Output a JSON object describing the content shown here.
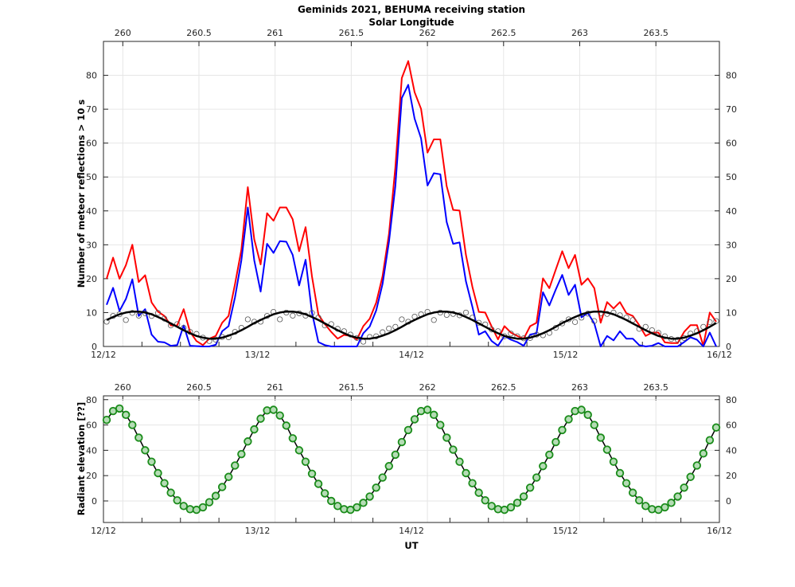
{
  "chart_data": [
    {
      "type": "line",
      "title": "Geminids 2021, BEHUMA receiving station",
      "top_axis_label": "Solar Longitude",
      "top_axis_ticks": [
        "260",
        "260.5",
        "261",
        "261.5",
        "262",
        "262.5",
        "263",
        "263.5"
      ],
      "top_axis_range": [
        259.873,
        263.917
      ],
      "xlabel": "",
      "x_tick_labels": [
        "12/12",
        "13/12",
        "14/12",
        "15/12",
        "16/12"
      ],
      "x": {
        "start": "12/12 00:30 UT",
        "step_hours": 1
      },
      "ylabel": "Number of meteor reflections > 10 s",
      "ylim": [
        0,
        90
      ],
      "y_ticks": [
        0,
        10,
        20,
        30,
        40,
        50,
        60,
        70,
        80
      ],
      "grid": true,
      "series": [
        {
          "color": "#ff0000",
          "style": "line",
          "values": [
            20,
            26.2,
            20,
            24,
            30,
            19,
            21,
            13,
            10.3,
            9,
            6.2,
            6.2,
            11,
            4.3,
            1.6,
            0.4,
            2.3,
            3.1,
            7,
            9,
            18.4,
            28.5,
            47,
            31.6,
            24.2,
            39.3,
            37.1,
            41,
            41,
            37.5,
            28.1,
            35.2,
            20.7,
            9.4,
            6.6,
            4.3,
            2.3,
            3.4,
            3.1,
            2.1,
            6,
            8.2,
            12.9,
            20.7,
            33.2,
            52.8,
            79.2,
            84.2,
            75,
            70.1,
            57.2,
            61.1,
            61.1,
            47.3,
            40.3,
            40.1,
            27,
            17.6,
            10.2,
            10,
            5.9,
            2.1,
            6,
            4.1,
            3.1,
            2.3,
            6,
            7,
            20.1,
            17.2,
            22.7,
            28.1,
            23.1,
            27,
            18.2,
            20.1,
            17.2,
            7,
            13.1,
            11.2,
            13.1,
            9.8,
            9,
            6.3,
            3.1,
            4.1,
            4.1,
            1.2,
            1,
            1,
            4.3,
            6.3,
            6.3,
            0.2,
            10,
            7.3
          ]
        },
        {
          "color": "#0000ff",
          "style": "line",
          "values": [
            12.3,
            17.3,
            10.5,
            14,
            19.8,
            9,
            11,
            3.5,
            1.4,
            1.2,
            0.2,
            0.4,
            6.2,
            0.2,
            0.1,
            0,
            0,
            0.5,
            4.5,
            6,
            14.5,
            25.4,
            41,
            25.4,
            16.2,
            30.3,
            27.6,
            31.1,
            30.9,
            27,
            18,
            25.6,
            10,
            1.3,
            0.4,
            0,
            0,
            0,
            0,
            0,
            3.9,
            5.9,
            10.6,
            18.4,
            30.9,
            47.3,
            73.3,
            77.2,
            67.2,
            61.4,
            47.5,
            51.1,
            50.8,
            36.7,
            30.3,
            30.7,
            19.2,
            11.7,
            3.5,
            4.5,
            1.6,
            0.2,
            3.1,
            2,
            1.3,
            0.2,
            3.5,
            3.9,
            16,
            12.1,
            16.8,
            21.1,
            15.2,
            18.2,
            8.6,
            9.9,
            6.8,
            0,
            3.1,
            1.8,
            4.5,
            2.3,
            2.3,
            0.4,
            0,
            0.2,
            1,
            0,
            0,
            0,
            1.3,
            2.7,
            2,
            0,
            4.1,
            0
          ]
        },
        {
          "color": "#555555",
          "style": "open-circles",
          "values": [
            7.3,
            9,
            9.5,
            7.8,
            9.9,
            9.1,
            9.8,
            9,
            9.9,
            8.2,
            6.2,
            6.6,
            5.5,
            4.3,
            3.7,
            2.6,
            1.6,
            2,
            2.8,
            2.7,
            4.3,
            5.5,
            8,
            7.3,
            7.3,
            9,
            10.2,
            8,
            10,
            9.1,
            9.8,
            9.1,
            9.9,
            8.5,
            6.2,
            6.6,
            5.2,
            4.5,
            3.5,
            2.5,
            1.4,
            2.8,
            3,
            4.2,
            5.3,
            5.8,
            8,
            7.3,
            8.8,
            9.5,
            10.2,
            7.8,
            10,
            9.3,
            9.6,
            9.2,
            10,
            8.5,
            7,
            6.5,
            5,
            4.5,
            3,
            3.8,
            3,
            2.4,
            2.5,
            3.5,
            3.3,
            4,
            5.5,
            6.8,
            8,
            7.2,
            8.5,
            9.7,
            7.5,
            9.8,
            9.6,
            10,
            9.2,
            8.5,
            7.8,
            5.2,
            5.8,
            4.8,
            4,
            3,
            2.2,
            2,
            2.5,
            3.8,
            4.5,
            5.8,
            7.2,
            7.5
          ]
        },
        {
          "color": "#000000",
          "style": "thick-line",
          "values": [
            7.8,
            8.7,
            9.5,
            10,
            10.3,
            10.3,
            10,
            9.5,
            8.7,
            7.8,
            6.8,
            5.8,
            4.8,
            3.9,
            3.1,
            2.6,
            2.3,
            2.3,
            2.6,
            3.2,
            3.9,
            4.8,
            5.8,
            6.9,
            7.8,
            8.7,
            9.5,
            10,
            10.3,
            10.3,
            10,
            9.5,
            8.7,
            7.8,
            6.8,
            5.8,
            4.8,
            3.9,
            3.1,
            2.6,
            2.3,
            2.3,
            2.6,
            3.2,
            3.9,
            4.8,
            5.8,
            6.9,
            7.8,
            8.7,
            9.5,
            10,
            10.3,
            10.3,
            10,
            9.5,
            8.7,
            7.8,
            6.8,
            5.8,
            4.8,
            3.9,
            3.1,
            2.6,
            2.3,
            2.3,
            2.6,
            3.2,
            3.9,
            4.8,
            5.8,
            6.9,
            7.8,
            8.7,
            9.5,
            10,
            10.3,
            10.3,
            10,
            9.5,
            8.7,
            7.8,
            6.8,
            5.8,
            4.8,
            3.9,
            3.1,
            2.6,
            2.3,
            2.3,
            2.6,
            3.2,
            3.9,
            4.8,
            5.8,
            6.9
          ]
        }
      ]
    },
    {
      "type": "line",
      "top_axis_ticks": [
        "260",
        "260.5",
        "261",
        "261.5",
        "262",
        "262.5",
        "263",
        "263.5"
      ],
      "top_axis_range": [
        259.873,
        263.917
      ],
      "x_tick_labels": [
        "12/12",
        "13/12",
        "14/12",
        "15/12",
        "16/12"
      ],
      "x": {
        "start": "12/12 00:30 UT",
        "step_hours": 1
      },
      "xlabel": "UT",
      "ylabel": "Radiant elevation [??]",
      "ylim": [
        -17,
        83
      ],
      "y_ticks": [
        0,
        20,
        40,
        60,
        80
      ],
      "grid": true,
      "series": [
        {
          "color": "#1a8c1a",
          "marker_fill": "#b5dcb5",
          "style": "line-with-circle-markers",
          "values": [
            64,
            71,
            73,
            68,
            60,
            50,
            40,
            31,
            22,
            14,
            6.5,
            0.5,
            -4,
            -6.5,
            -7,
            -5,
            -1,
            4,
            11,
            19,
            28,
            37,
            47,
            56.5,
            65,
            71.5,
            72,
            67.5,
            59.5,
            49.5,
            40,
            31,
            21.5,
            13.5,
            6,
            0,
            -4,
            -6.5,
            -7,
            -5,
            -1.5,
            3.5,
            10.5,
            18.5,
            27.5,
            36.5,
            46.5,
            56,
            64.5,
            71,
            72,
            68,
            60,
            50,
            40.5,
            31,
            22,
            14,
            6.5,
            0.5,
            -4,
            -6.5,
            -7,
            -5,
            -1.5,
            3.5,
            10.5,
            18.5,
            27.5,
            36.5,
            46.5,
            56,
            64.5,
            71,
            72,
            68,
            60,
            50,
            40.5,
            31,
            22,
            14,
            6.5,
            0.5,
            -4,
            -6.5,
            -7,
            -5,
            -1.5,
            3.5,
            10.5,
            19,
            28,
            37.5,
            48,
            58
          ]
        }
      ]
    }
  ]
}
